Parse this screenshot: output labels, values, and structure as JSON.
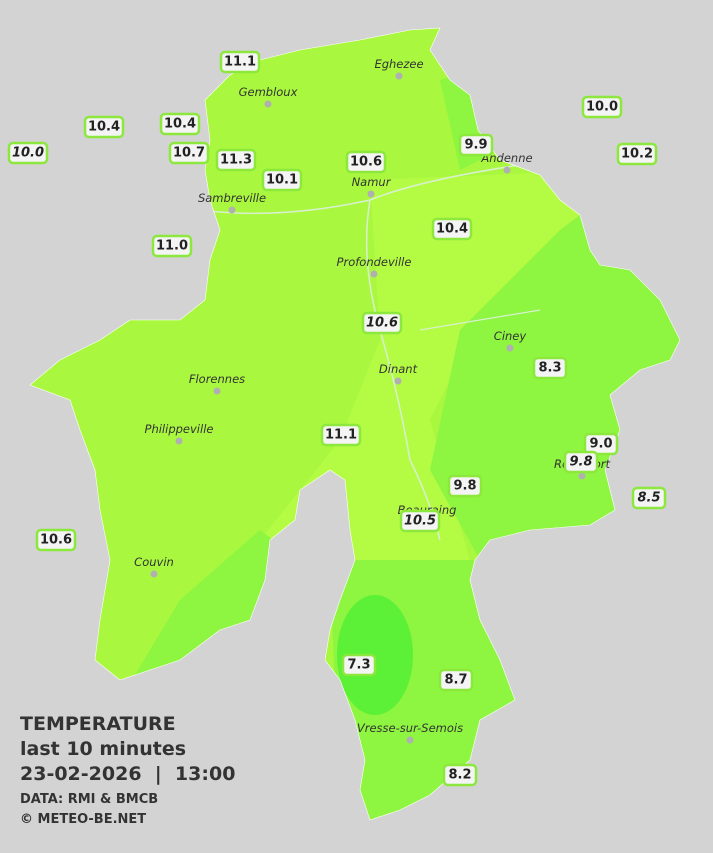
{
  "title": [
    "TEMPERATURE",
    "last 10 minutes",
    "23-02-2026  |  13:00"
  ],
  "credits": [
    "DATA: RMI & BMCB",
    "© METEO-BE.NET"
  ],
  "towns": [
    "Eghezee",
    "Gembloux",
    "Andenne",
    "Namur",
    "Sambreville",
    "Profondeville",
    "Ciney",
    "Dinant",
    "Florennes",
    "Philippeville",
    "Rochefort",
    "Beauraing",
    "Couvin",
    "Vresse-sur-Semois"
  ],
  "stations": [
    {
      "label": "11.1",
      "italic": false
    },
    {
      "label": "10.4",
      "italic": false
    },
    {
      "label": "10.4",
      "italic": false
    },
    {
      "label": "10.0",
      "italic": true
    },
    {
      "label": "10.7",
      "italic": false
    },
    {
      "label": "11.3",
      "italic": false
    },
    {
      "label": "10.1",
      "italic": false
    },
    {
      "label": "10.6",
      "italic": false
    },
    {
      "label": "9.9",
      "italic": false
    },
    {
      "label": "10.0",
      "italic": false
    },
    {
      "label": "10.2",
      "italic": false
    },
    {
      "label": "11.0",
      "italic": false
    },
    {
      "label": "10.4",
      "italic": false
    },
    {
      "label": "10.6",
      "italic": true
    },
    {
      "label": "8.3",
      "italic": false
    },
    {
      "label": "11.1",
      "italic": false
    },
    {
      "label": "9.0",
      "italic": false
    },
    {
      "label": "9.8",
      "italic": true
    },
    {
      "label": "9.8",
      "italic": false
    },
    {
      "label": "8.5",
      "italic": true
    },
    {
      "label": "10.5",
      "italic": true
    },
    {
      "label": "10.6",
      "italic": false
    },
    {
      "label": "7.3",
      "italic": false
    },
    {
      "label": "8.7",
      "italic": false
    },
    {
      "label": "8.2",
      "italic": false
    }
  ]
}
